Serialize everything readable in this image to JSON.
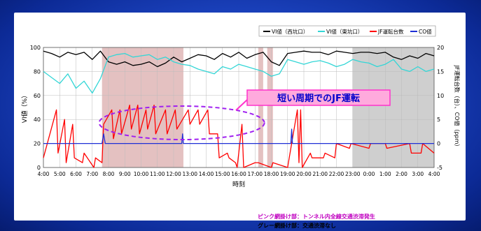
{
  "chart_data": {
    "type": "line",
    "xlabel": "時刻",
    "ylabel": "VI値（%）",
    "ylabel_right": "JF運転台数（台）、CO値（ppm）",
    "x_ticks": [
      "4:00",
      "5:00",
      "6:00",
      "7:00",
      "8:00",
      "9:00",
      "10:00",
      "11:00",
      "12:00",
      "13:00",
      "14:00",
      "15:00",
      "16:00",
      "17:00",
      "18:00",
      "19:00",
      "20:00",
      "21:00",
      "22:00",
      "23:00",
      "0:00",
      "1:00",
      "2:00",
      "3:00",
      "4:00"
    ],
    "ylim": [
      0,
      100
    ],
    "y_ticks": [
      0,
      20,
      40,
      60,
      80,
      100
    ],
    "ylim_right": [
      -5,
      20
    ],
    "y_ticks_right": [
      -5,
      0,
      5,
      10,
      15,
      20
    ],
    "grid": true,
    "legend_position": "top-right",
    "legend": [
      "VI値（西坑口）",
      "VI値（東坑口）",
      "JF運転台数",
      "CO値"
    ],
    "series": [
      {
        "name": "VI値（西坑口）",
        "color": "#000000",
        "axis": "left",
        "x": [
          0,
          0.5,
          1,
          1.5,
          2,
          2.5,
          3,
          3.5,
          4,
          4.5,
          5,
          5.5,
          6,
          6.5,
          7,
          7.5,
          8,
          8.5,
          9,
          9.5,
          10,
          10.5,
          11,
          11.5,
          12,
          12.5,
          13,
          13.5,
          14,
          14.5,
          15,
          15.5,
          16,
          16.5,
          17,
          17.5,
          18,
          18.5,
          19,
          19.5,
          20,
          20.5,
          21,
          21.5,
          22,
          22.5,
          23,
          23.5,
          24
        ],
        "values": [
          97,
          95,
          92,
          96,
          94,
          96,
          90,
          97,
          88,
          86,
          88,
          85,
          86,
          88,
          84,
          87,
          92,
          88,
          91,
          94,
          93,
          90,
          95,
          92,
          96,
          91,
          94,
          96,
          88,
          85,
          95,
          96,
          97,
          96,
          96,
          94,
          97,
          96,
          95,
          96,
          96,
          95,
          96,
          92,
          90,
          93,
          91,
          95,
          93
        ]
      },
      {
        "name": "VI値（東坑口）",
        "color": "#33d6d6",
        "axis": "left",
        "x": [
          0,
          0.5,
          1,
          1.5,
          2,
          2.5,
          3,
          3.5,
          4,
          4.5,
          5,
          5.5,
          6,
          6.5,
          7,
          7.5,
          8,
          8.5,
          9,
          9.5,
          10,
          10.5,
          11,
          11.5,
          12,
          12.5,
          13,
          13.5,
          14,
          14.5,
          15,
          15.5,
          16,
          16.5,
          17,
          17.5,
          18,
          18.5,
          19,
          19.5,
          20,
          20.5,
          21,
          21.5,
          22,
          22.5,
          23,
          23.5,
          24
        ],
        "values": [
          80,
          75,
          70,
          78,
          66,
          72,
          62,
          74,
          92,
          94,
          95,
          92,
          93,
          94,
          90,
          92,
          88,
          86,
          85,
          82,
          80,
          78,
          84,
          82,
          86,
          84,
          82,
          80,
          76,
          78,
          90,
          88,
          86,
          88,
          89,
          87,
          84,
          86,
          90,
          88,
          87,
          84,
          86,
          90,
          82,
          80,
          84,
          80,
          82
        ]
      },
      {
        "name": "JF運転台数",
        "color": "#ff0000",
        "axis": "right",
        "x": [
          0,
          0.8,
          0.9,
          1.3,
          1.4,
          1.8,
          1.9,
          2.4,
          2.5,
          3.1,
          3.2,
          3.6,
          3.7,
          4.2,
          4.3,
          4.7,
          4.8,
          5.3,
          5.4,
          5.8,
          5.9,
          6.3,
          6.4,
          6.8,
          6.9,
          7.5,
          7.6,
          8.1,
          8.2,
          8.9,
          9.0,
          9.5,
          9.6,
          10.1,
          10.2,
          10.7,
          10.8,
          11.3,
          11.4,
          11.8,
          11.9,
          12.2,
          12.3,
          13.0,
          13.2,
          14.0,
          14.1,
          15.0,
          15.1,
          15.6,
          15.7,
          15.8,
          15.9,
          16.4,
          16.5,
          17.2,
          17.3,
          17.9,
          18.0,
          18.8,
          18.9,
          20.0,
          20.1,
          21.0,
          21.1,
          22.5,
          22.6,
          23.2,
          23.3,
          24
        ],
        "values": [
          -3,
          7,
          -2,
          5,
          -4,
          4,
          -3,
          -4,
          -2,
          -5,
          -3,
          -4,
          4,
          7,
          1,
          7,
          2,
          8,
          3,
          8,
          2,
          7,
          3,
          8,
          2,
          7,
          2,
          7,
          3,
          7,
          4,
          7,
          4,
          7,
          2,
          2,
          -3,
          -2,
          -3,
          -4,
          -5,
          4,
          -5,
          -4,
          -4,
          -5,
          -4,
          -5,
          -3,
          7,
          -4,
          7,
          -5,
          -2,
          -3,
          -3,
          -2,
          -3,
          0,
          -1,
          0,
          -1,
          0,
          0,
          -1,
          0,
          -2,
          -2,
          0,
          -2
        ]
      },
      {
        "name": "CO値",
        "color": "#1f2fd6",
        "axis": "right",
        "x": [
          0,
          3.6,
          3.7,
          3.8,
          8.5,
          8.55,
          8.6,
          15.2,
          15.25,
          15.3,
          24
        ],
        "values": [
          0,
          0,
          2,
          0,
          0,
          2,
          0,
          0,
          3,
          0,
          0
        ]
      }
    ],
    "shaded_regions": [
      {
        "label": "ピンク網掛け部",
        "color": "#d9a6a6",
        "from": 3.6,
        "to": 8.6
      },
      {
        "label": "ピンク網掛け部",
        "color": "#d9a6a6",
        "from": 13.2,
        "to": 13.5
      },
      {
        "label": "ピンク網掛け部",
        "color": "#d9a6a6",
        "from": 13.75,
        "to": 14.1
      },
      {
        "label": "グレー網掛け部",
        "color": "#bbbbbb",
        "from": 19.0,
        "to": 24
      }
    ],
    "annotation": {
      "text": "短い周期でのJF運転",
      "color": "#0000cc",
      "background": "#ffaadd",
      "border": "#ff33cc"
    }
  },
  "notes": [
    "ピンク網掛け部：トンネル内全線交通渋滞発生",
    "グレー網掛け部：交通渋滞なし"
  ]
}
